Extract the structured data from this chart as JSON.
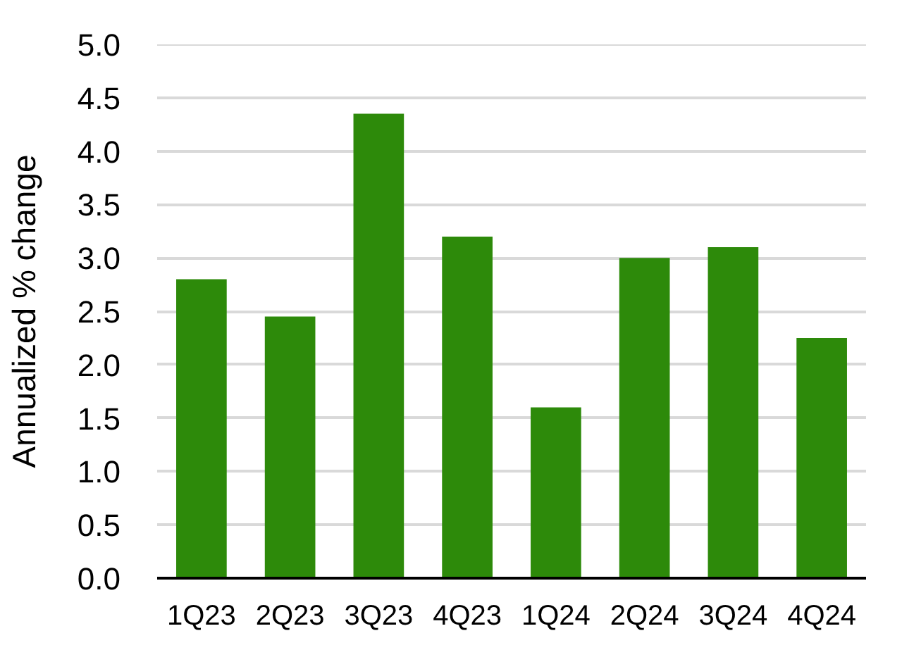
{
  "chart_data": {
    "type": "bar",
    "ylabel": "Annualized % change",
    "categories": [
      "1Q23",
      "2Q23",
      "3Q23",
      "4Q23",
      "1Q24",
      "2Q24",
      "3Q24",
      "4Q24"
    ],
    "values": [
      2.8,
      2.45,
      4.35,
      3.2,
      1.6,
      3.0,
      3.1,
      2.25
    ],
    "color": "#2d8a0a",
    "ylim": [
      0,
      5
    ],
    "yticks": [
      {
        "value": 0,
        "label": "0.0"
      },
      {
        "value": 0.5,
        "label": "0.5"
      },
      {
        "value": 1,
        "label": "1.0"
      },
      {
        "value": 1.5,
        "label": "1.5"
      },
      {
        "value": 2,
        "label": "2.0"
      },
      {
        "value": 2.5,
        "label": "2.5"
      },
      {
        "value": 3,
        "label": "3.0"
      },
      {
        "value": 3.5,
        "label": "3.5"
      },
      {
        "value": 4,
        "label": "4.0"
      },
      {
        "value": 4.5,
        "label": "4.5"
      },
      {
        "value": 5,
        "label": "5.0"
      }
    ],
    "grid": "y"
  }
}
